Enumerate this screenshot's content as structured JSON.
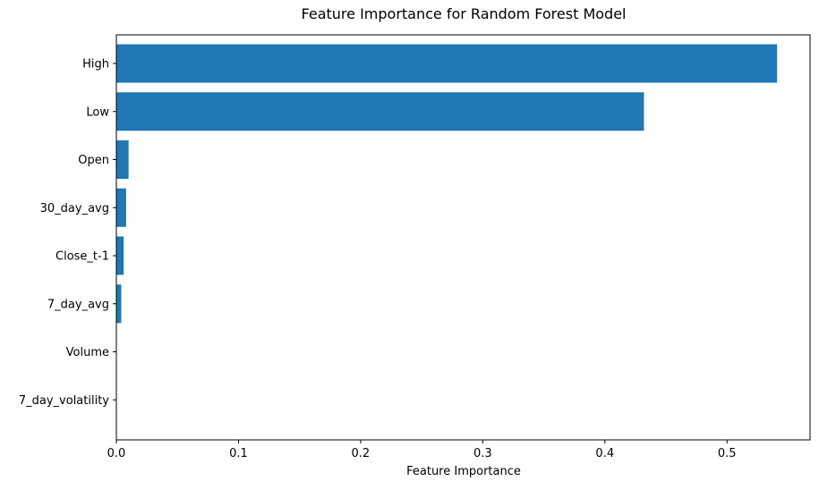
{
  "chart_data": {
    "type": "bar",
    "orientation": "horizontal",
    "title": "Feature Importance for Random Forest Model",
    "xlabel": "Feature Importance",
    "ylabel": "",
    "categories": [
      "High",
      "Low",
      "Open",
      "30_day_avg",
      "Close_t-1",
      "7_day_avg",
      "Volume",
      "7_day_volatility"
    ],
    "values": [
      0.541,
      0.432,
      0.01,
      0.008,
      0.006,
      0.004,
      0.0003,
      0.0002
    ],
    "xlim": [
      0,
      0.568
    ],
    "xticks": [
      "0.0",
      "0.1",
      "0.2",
      "0.3",
      "0.4",
      "0.5"
    ],
    "bar_color": "#1f77b4",
    "grid": false,
    "legend": "none"
  }
}
